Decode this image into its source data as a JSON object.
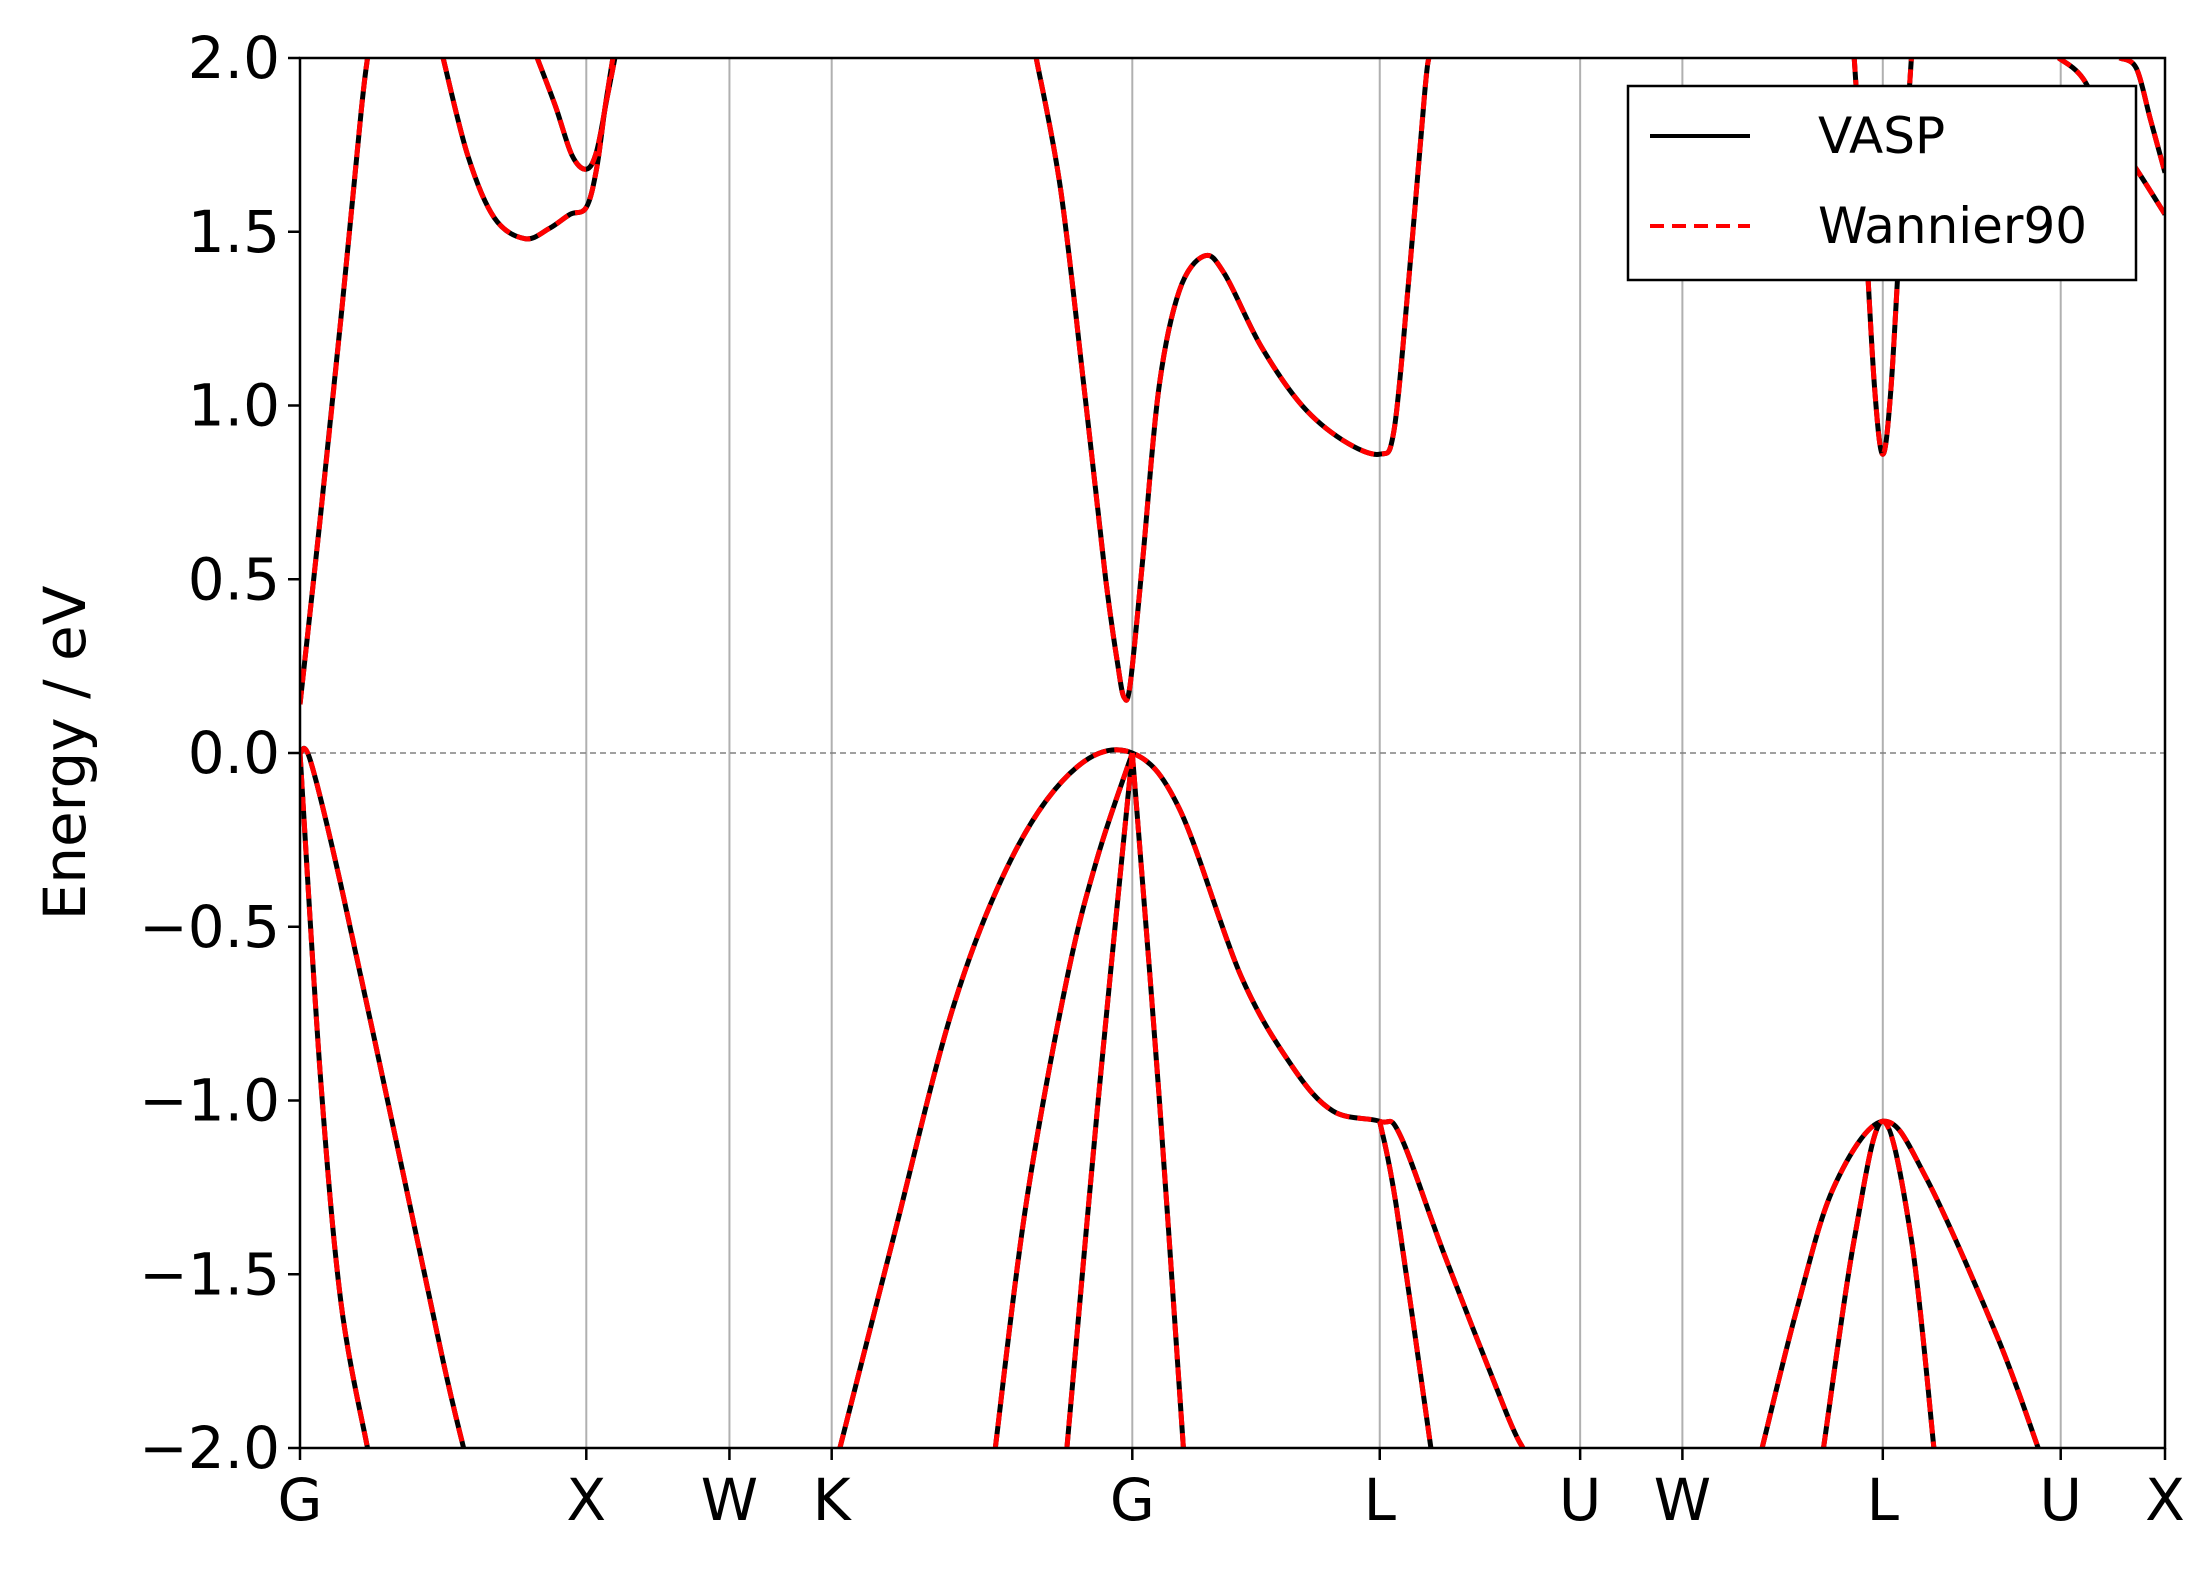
{
  "chart_data": {
    "type": "line",
    "title": "",
    "xlabel": "",
    "ylabel": "Energy / eV",
    "ylim": [
      -2.0,
      2.0
    ],
    "xlim": [
      0,
      9.12
    ],
    "yticks": [
      -2.0,
      -1.5,
      -1.0,
      -0.5,
      0.0,
      0.5,
      1.0,
      1.5,
      2.0
    ],
    "ytick_labels": [
      "−2.0",
      "−1.5",
      "−1.0",
      "−0.5",
      "0.0",
      "0.5",
      "1.0",
      "1.5",
      "2.0"
    ],
    "xticks": [
      {
        "label": "G",
        "x": 0.0
      },
      {
        "label": "X",
        "x": 1.4
      },
      {
        "label": "W",
        "x": 2.1
      },
      {
        "label": "K",
        "x": 2.6
      },
      {
        "label": "G",
        "x": 4.07
      },
      {
        "label": "L",
        "x": 5.28
      },
      {
        "label": "U",
        "x": 6.26
      },
      {
        "label": "W",
        "x": 6.76
      },
      {
        "label": "L",
        "x": 7.74
      },
      {
        "label": "U",
        "x": 8.61
      },
      {
        "label": "X",
        "x": 9.12
      }
    ],
    "grid": "vertical at high-symmetry points",
    "fermi_level": 0.0,
    "legend": {
      "placement": "top-right",
      "entries": [
        {
          "label": "VASP",
          "color": "#000000",
          "style": "solid"
        },
        {
          "label": "Wannier90",
          "color": "#ff0000",
          "style": "dashed"
        }
      ]
    },
    "series": [
      {
        "name": "VASP",
        "color": "#000000",
        "bands": [
          [
            [
              0,
              0.14
            ],
            [
              0.1,
              0.68
            ],
            [
              0.2,
              1.25
            ],
            [
              0.3,
              1.85
            ],
            [
              0.33,
              2.0
            ]
          ],
          [
            [
              0.7,
              2.0
            ],
            [
              0.82,
              1.72
            ],
            [
              0.95,
              1.54
            ],
            [
              1.1,
              1.48
            ],
            [
              1.22,
              1.51
            ],
            [
              1.32,
              1.55
            ],
            [
              1.4,
              1.57
            ],
            [
              1.45,
              1.68
            ],
            [
              1.49,
              1.85
            ],
            [
              1.53,
              2.0
            ]
          ],
          [
            [
              1.16,
              2.0
            ],
            [
              1.25,
              1.86
            ],
            [
              1.33,
              1.72
            ],
            [
              1.4,
              1.68
            ],
            [
              1.45,
              1.73
            ],
            [
              1.5,
              1.88
            ],
            [
              1.54,
              2.0
            ]
          ],
          [
            [
              3.6,
              2.0
            ],
            [
              3.72,
              1.62
            ],
            [
              3.84,
              1.02
            ],
            [
              3.94,
              0.5
            ],
            [
              4.0,
              0.25
            ],
            [
              4.03,
              0.16
            ],
            [
              4.06,
              0.2
            ],
            [
              4.12,
              0.55
            ],
            [
              4.2,
              1.05
            ],
            [
              4.3,
              1.33
            ],
            [
              4.42,
              1.43
            ],
            [
              4.52,
              1.38
            ],
            [
              4.7,
              1.17
            ],
            [
              4.9,
              1.0
            ],
            [
              5.1,
              0.9
            ],
            [
              5.28,
              0.86
            ],
            [
              5.35,
              0.93
            ],
            [
              5.42,
              1.35
            ],
            [
              5.5,
              1.9
            ],
            [
              5.52,
              2.0
            ]
          ],
          [
            [
              7.6,
              2.0
            ],
            [
              7.65,
              1.55
            ],
            [
              7.7,
              1.05
            ],
            [
              7.74,
              0.86
            ],
            [
              7.78,
              1.05
            ],
            [
              7.83,
              1.55
            ],
            [
              7.88,
              2.0
            ]
          ],
          [
            [
              8.9,
              2.0
            ],
            [
              8.98,
              1.97
            ],
            [
              9.05,
              1.82
            ],
            [
              9.12,
              1.67
            ]
          ],
          [
            [
              8.6,
              2.0
            ],
            [
              8.72,
              1.94
            ],
            [
              8.86,
              1.78
            ],
            [
              8.98,
              1.68
            ],
            [
              9.12,
              1.55
            ]
          ],
          [
            [
              0,
              0.0
            ],
            [
              0.05,
              -0.02
            ],
            [
              0.2,
              -0.38
            ],
            [
              0.45,
              -1.06
            ],
            [
              0.7,
              -1.75
            ],
            [
              0.8,
              -2.0
            ]
          ],
          [
            [
              0,
              0.0
            ],
            [
              0.1,
              -0.93
            ],
            [
              0.2,
              -1.58
            ],
            [
              0.33,
              -2.0
            ]
          ],
          [
            [
              2.64,
              -2.0
            ],
            [
              2.9,
              -1.4
            ],
            [
              3.2,
              -0.72
            ],
            [
              3.5,
              -0.28
            ],
            [
              3.8,
              -0.04
            ],
            [
              4.07,
              0.0
            ],
            [
              4.3,
              -0.16
            ],
            [
              4.6,
              -0.64
            ],
            [
              4.85,
              -0.9
            ],
            [
              5.05,
              -1.03
            ],
            [
              5.28,
              -1.06
            ],
            [
              5.38,
              -1.1
            ],
            [
              5.6,
              -1.45
            ],
            [
              5.9,
              -1.9
            ],
            [
              5.98,
              -2.0
            ]
          ],
          [
            [
              3.4,
              -2.0
            ],
            [
              3.55,
              -1.3
            ],
            [
              3.75,
              -0.65
            ],
            [
              3.9,
              -0.3
            ],
            [
              4.07,
              0.0
            ]
          ],
          [
            [
              3.75,
              -2.0
            ],
            [
              3.9,
              -1.02
            ],
            [
              4.07,
              0.0
            ]
          ],
          [
            [
              4.07,
              0.0
            ],
            [
              4.2,
              -0.98
            ],
            [
              4.32,
              -2.0
            ]
          ],
          [
            [
              5.28,
              -1.06
            ],
            [
              5.36,
              -1.3
            ],
            [
              5.53,
              -2.0
            ]
          ],
          [
            [
              7.15,
              -2.0
            ],
            [
              7.32,
              -1.6
            ],
            [
              7.5,
              -1.25
            ],
            [
              7.74,
              -1.06
            ],
            [
              7.95,
              -1.22
            ],
            [
              8.3,
              -1.68
            ],
            [
              8.5,
              -2.0
            ]
          ],
          [
            [
              7.45,
              -2.0
            ],
            [
              7.6,
              -1.4
            ],
            [
              7.74,
              -1.06
            ],
            [
              7.88,
              -1.4
            ],
            [
              7.99,
              -2.0
            ]
          ]
        ]
      },
      {
        "name": "Wannier90",
        "color": "#ff0000",
        "bands": "overlaps VASP"
      }
    ]
  }
}
